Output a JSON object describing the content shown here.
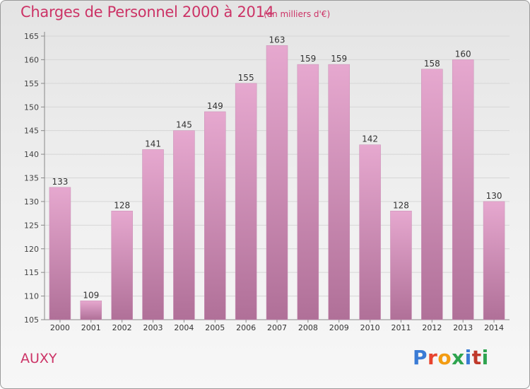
{
  "header": {
    "title": "Charges de Personnel 2000 à 2014",
    "subtitle": "(en milliers d'€)"
  },
  "footer": {
    "commune": "AUXY",
    "brand": "Proxiti",
    "brand_colors": [
      "#3a7bd5",
      "#e8432e",
      "#f39c12",
      "#2ea44f",
      "#3a7bd5",
      "#c0392b",
      "#2ea44f"
    ]
  },
  "chart_data": {
    "type": "bar",
    "title": "Charges de Personnel 2000 à 2014",
    "subtitle": "(en milliers d'€)",
    "categories": [
      "2000",
      "2001",
      "2002",
      "2003",
      "2004",
      "2005",
      "2006",
      "2007",
      "2008",
      "2009",
      "2010",
      "2011",
      "2012",
      "2013",
      "2014"
    ],
    "values": [
      133,
      109,
      128,
      141,
      145,
      149,
      155,
      163,
      159,
      159,
      142,
      128,
      158,
      160,
      130
    ],
    "ylim": [
      105,
      165
    ],
    "yticks": [
      105,
      110,
      115,
      120,
      125,
      130,
      135,
      140,
      145,
      150,
      155,
      160,
      165
    ],
    "grid": true,
    "bar_color_top": "#e6a8cf",
    "bar_color_bottom": "#b07098"
  }
}
